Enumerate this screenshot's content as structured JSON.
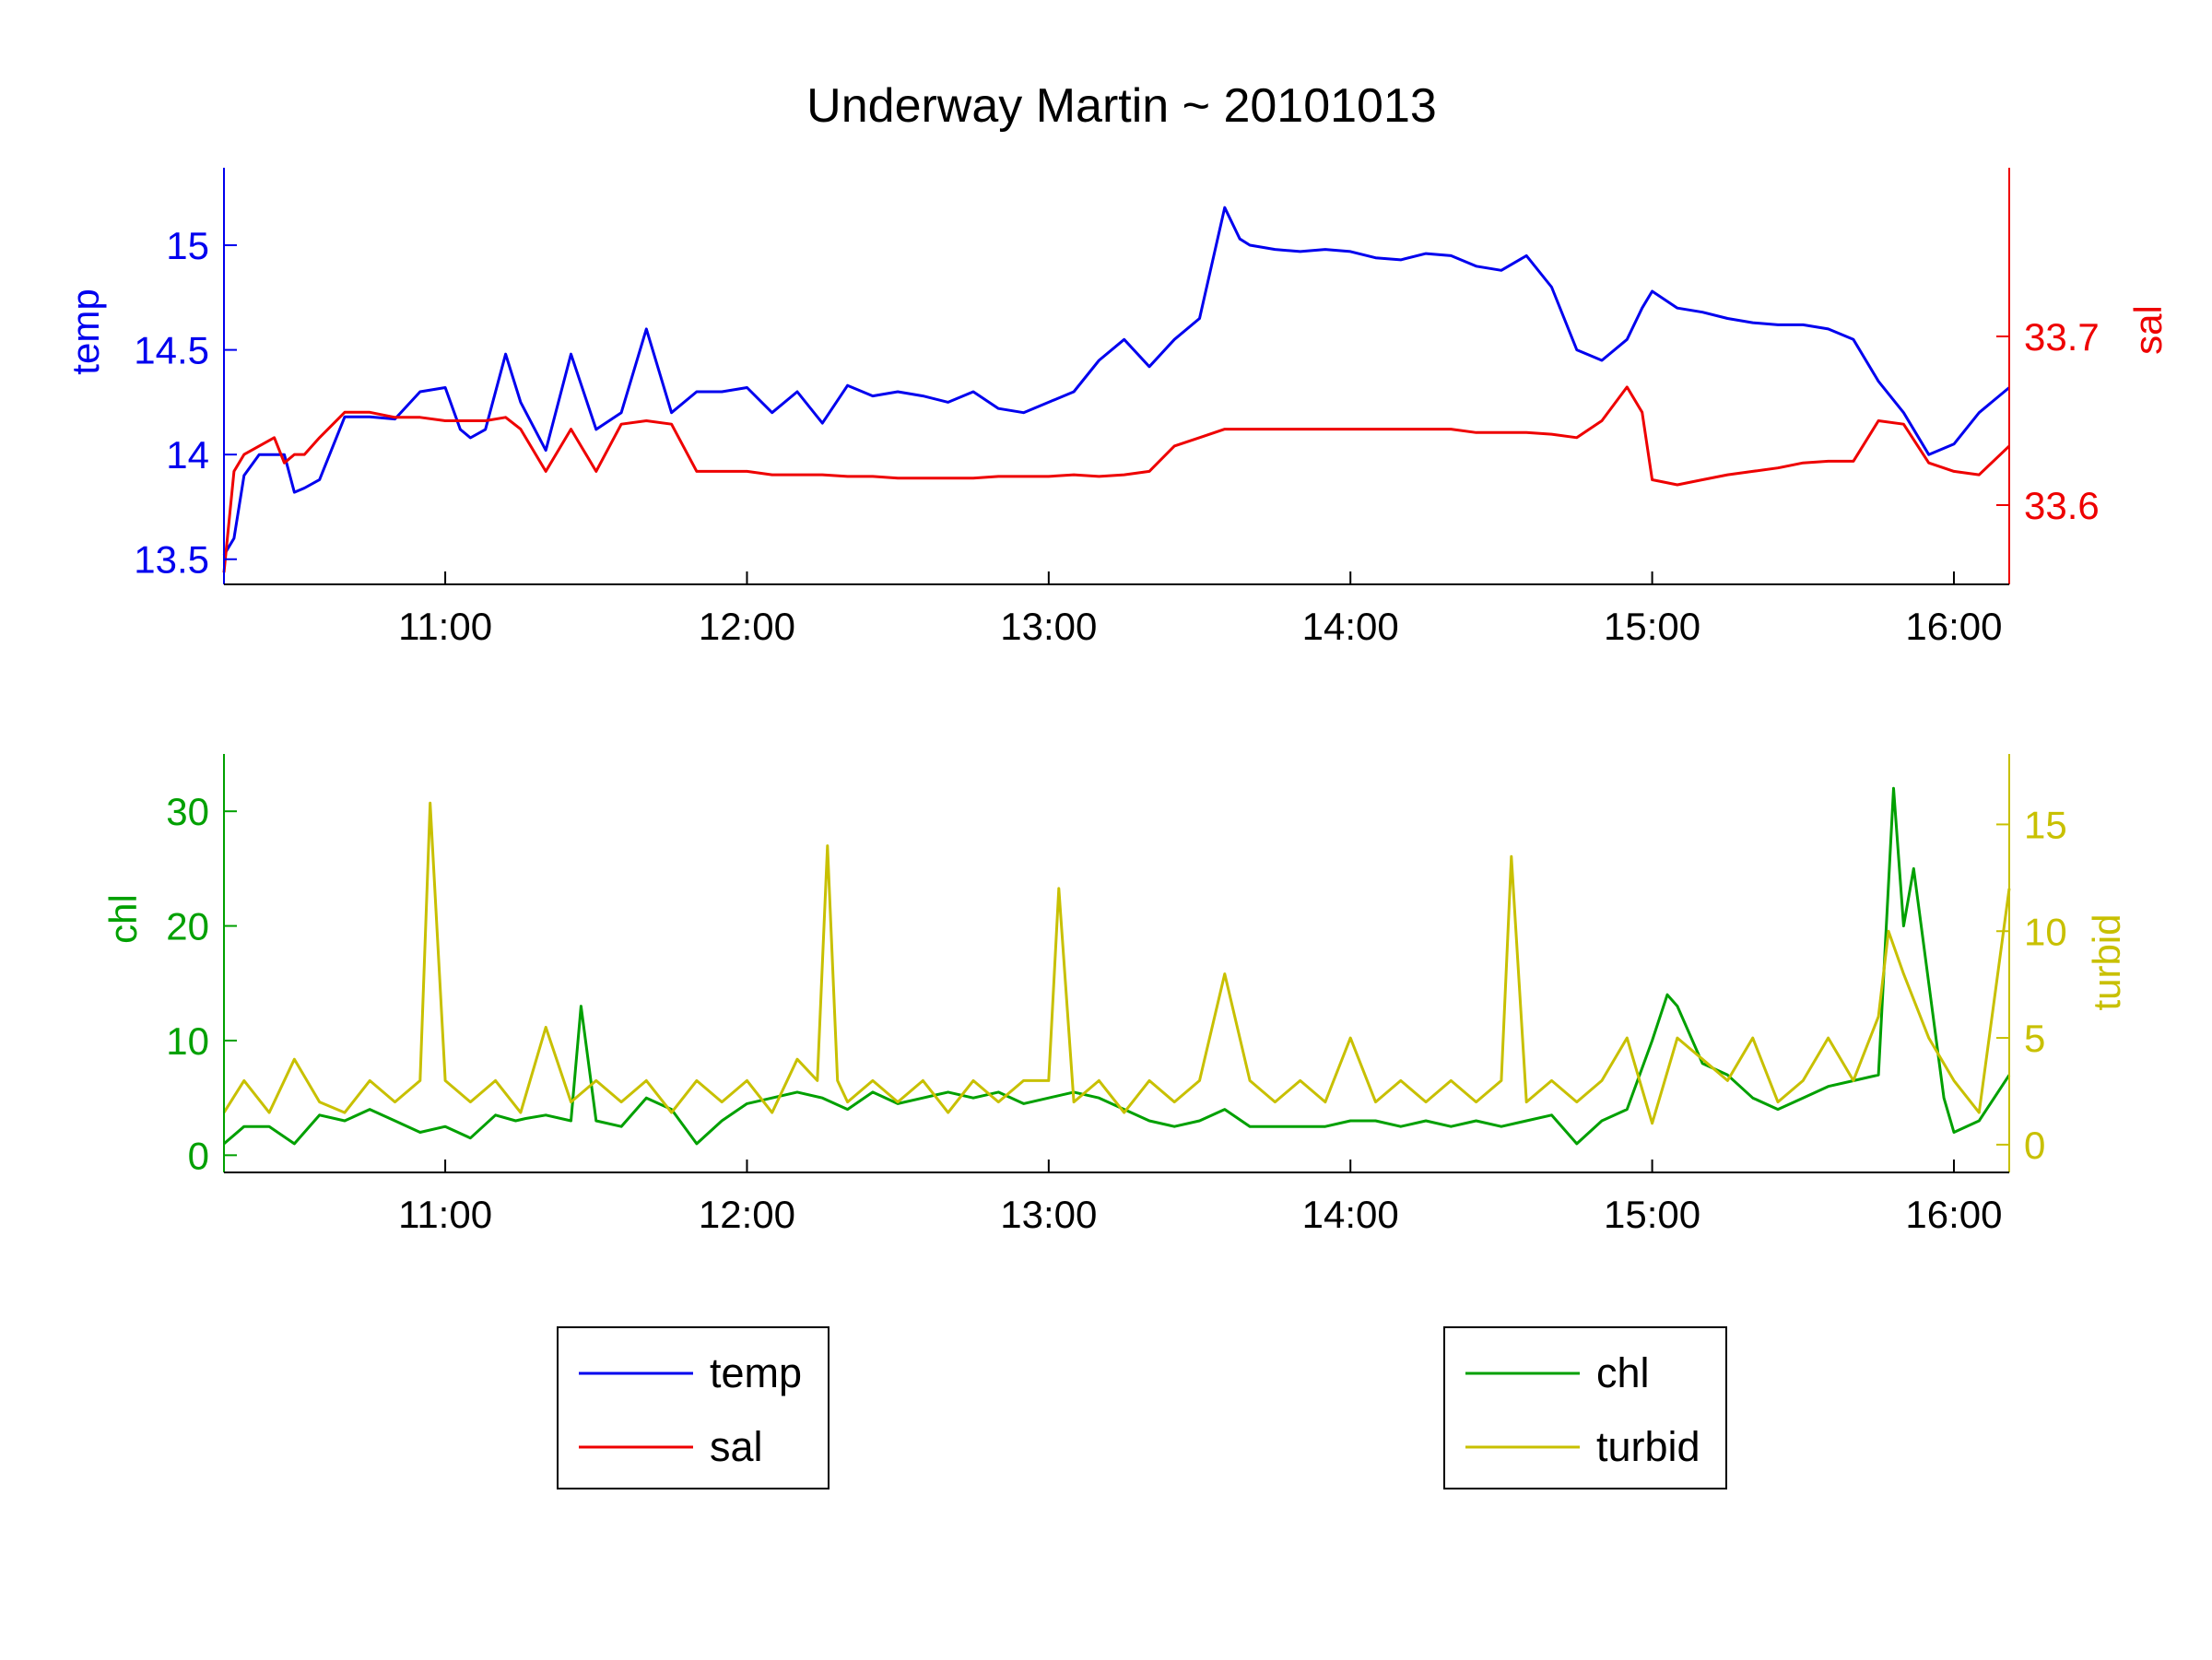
{
  "title": "Underway Martin ~ 20101013",
  "colors": {
    "temp": "#0000ee",
    "sal": "#ee0000",
    "chl": "#00a000",
    "turbid": "#c8c000",
    "axis": "#000000"
  },
  "chart_data": [
    {
      "type": "line",
      "panel": "top",
      "xlim": [
        "10:16",
        "16:11"
      ],
      "x_ticks": [
        "11:00",
        "12:00",
        "13:00",
        "14:00",
        "15:00",
        "16:00"
      ],
      "y_left": {
        "label": "temp",
        "ylim": [
          13.38,
          15.37
        ],
        "ticks": [
          "13.5",
          "14",
          "14.5",
          "15"
        ]
      },
      "y_right": {
        "label": "sal",
        "ylim": [
          33.553,
          33.8
        ],
        "ticks": [
          "33.6",
          "33.7"
        ]
      },
      "grid": false,
      "series": [
        {
          "name": "temp",
          "axis": "left",
          "x": [
            "10:16",
            "10:18",
            "10:20",
            "10:23",
            "10:26",
            "10:28",
            "10:30",
            "10:32",
            "10:35",
            "10:40",
            "10:45",
            "10:50",
            "10:55",
            "11:00",
            "11:03",
            "11:05",
            "11:08",
            "11:12",
            "11:15",
            "11:20",
            "11:25",
            "11:30",
            "11:35",
            "11:40",
            "11:45",
            "11:50",
            "11:55",
            "12:00",
            "12:05",
            "12:10",
            "12:15",
            "12:20",
            "12:25",
            "12:30",
            "12:35",
            "12:40",
            "12:45",
            "12:50",
            "12:55",
            "13:00",
            "13:05",
            "13:10",
            "13:15",
            "13:20",
            "13:25",
            "13:30",
            "13:35",
            "13:38",
            "13:40",
            "13:45",
            "13:50",
            "13:55",
            "14:00",
            "14:05",
            "14:10",
            "14:15",
            "14:20",
            "14:25",
            "14:30",
            "14:35",
            "14:40",
            "14:45",
            "14:50",
            "14:55",
            "14:58",
            "15:00",
            "15:05",
            "15:10",
            "15:15",
            "15:20",
            "15:25",
            "15:30",
            "15:35",
            "15:40",
            "15:45",
            "15:50",
            "15:55",
            "16:00",
            "16:05",
            "16:11"
          ],
          "values": [
            13.52,
            13.6,
            13.9,
            14.0,
            14.0,
            14.0,
            13.82,
            13.84,
            13.88,
            14.18,
            14.18,
            14.17,
            14.3,
            14.32,
            14.12,
            14.08,
            14.12,
            14.48,
            14.25,
            14.02,
            14.48,
            14.12,
            14.2,
            14.6,
            14.2,
            14.3,
            14.3,
            14.32,
            14.2,
            14.3,
            14.15,
            14.33,
            14.28,
            14.3,
            14.28,
            14.25,
            14.3,
            14.22,
            14.2,
            14.25,
            14.3,
            14.45,
            14.55,
            14.42,
            14.55,
            14.65,
            15.18,
            15.03,
            15.0,
            14.98,
            14.97,
            14.98,
            14.97,
            14.94,
            14.93,
            14.96,
            14.95,
            14.9,
            14.88,
            14.95,
            14.8,
            14.5,
            14.45,
            14.55,
            14.7,
            14.78,
            14.7,
            14.68,
            14.65,
            14.63,
            14.62,
            14.62,
            14.6,
            14.55,
            14.35,
            14.2,
            14.0,
            14.05,
            14.2,
            14.32
          ]
        },
        {
          "name": "sal",
          "axis": "right",
          "x": [
            "10:16",
            "10:18",
            "10:20",
            "10:23",
            "10:26",
            "10:28",
            "10:30",
            "10:32",
            "10:35",
            "10:40",
            "10:45",
            "10:50",
            "10:55",
            "11:00",
            "11:03",
            "11:05",
            "11:08",
            "11:12",
            "11:15",
            "11:20",
            "11:25",
            "11:30",
            "11:35",
            "11:40",
            "11:45",
            "11:50",
            "11:55",
            "12:00",
            "12:05",
            "12:10",
            "12:15",
            "12:20",
            "12:25",
            "12:30",
            "12:35",
            "12:40",
            "12:45",
            "12:50",
            "12:55",
            "13:00",
            "13:05",
            "13:10",
            "13:15",
            "13:20",
            "13:25",
            "13:30",
            "13:35",
            "13:38",
            "13:40",
            "13:45",
            "13:50",
            "13:55",
            "14:00",
            "14:05",
            "14:10",
            "14:15",
            "14:20",
            "14:25",
            "14:30",
            "14:35",
            "14:40",
            "14:45",
            "14:50",
            "14:55",
            "14:58",
            "15:00",
            "15:05",
            "15:10",
            "15:15",
            "15:20",
            "15:25",
            "15:30",
            "15:35",
            "15:40",
            "15:45",
            "15:50",
            "15:55",
            "16:00",
            "16:05",
            "16:11"
          ],
          "values": [
            33.56,
            33.62,
            33.63,
            33.635,
            33.64,
            33.625,
            33.63,
            33.63,
            33.64,
            33.655,
            33.655,
            33.652,
            33.652,
            33.65,
            33.65,
            33.65,
            33.65,
            33.652,
            33.645,
            33.62,
            33.645,
            33.62,
            33.648,
            33.65,
            33.648,
            33.62,
            33.62,
            33.62,
            33.618,
            33.618,
            33.618,
            33.617,
            33.617,
            33.616,
            33.616,
            33.616,
            33.616,
            33.617,
            33.617,
            33.617,
            33.618,
            33.617,
            33.618,
            33.62,
            33.635,
            33.64,
            33.645,
            33.645,
            33.645,
            33.645,
            33.645,
            33.645,
            33.645,
            33.645,
            33.645,
            33.645,
            33.645,
            33.643,
            33.643,
            33.643,
            33.642,
            33.64,
            33.65,
            33.67,
            33.655,
            33.615,
            33.612,
            33.615,
            33.618,
            33.62,
            33.622,
            33.625,
            33.626,
            33.626,
            33.65,
            33.648,
            33.625,
            33.62,
            33.618,
            33.635
          ]
        }
      ]
    },
    {
      "type": "line",
      "panel": "bottom",
      "xlim": [
        "10:16",
        "16:11"
      ],
      "x_ticks": [
        "11:00",
        "12:00",
        "13:00",
        "14:00",
        "15:00",
        "16:00"
      ],
      "y_left": {
        "label": "chl",
        "ylim": [
          -1.5,
          35
        ],
        "ticks": [
          "0",
          "10",
          "20",
          "30"
        ]
      },
      "y_right": {
        "label": "turbid",
        "ylim": [
          -1.3,
          18.3
        ],
        "ticks": [
          "0",
          "5",
          "10",
          "15"
        ]
      },
      "grid": false,
      "series": [
        {
          "name": "chl",
          "axis": "left",
          "x": [
            "10:16",
            "10:20",
            "10:25",
            "10:30",
            "10:35",
            "10:40",
            "10:45",
            "10:50",
            "10:55",
            "11:00",
            "11:05",
            "11:10",
            "11:14",
            "11:16",
            "11:20",
            "11:25",
            "11:27",
            "11:30",
            "11:35",
            "11:40",
            "11:45",
            "11:50",
            "11:55",
            "12:00",
            "12:05",
            "12:10",
            "12:15",
            "12:20",
            "12:25",
            "12:30",
            "12:35",
            "12:40",
            "12:45",
            "12:50",
            "12:55",
            "13:00",
            "13:05",
            "13:10",
            "13:15",
            "13:20",
            "13:25",
            "13:30",
            "13:35",
            "13:40",
            "13:45",
            "13:50",
            "13:55",
            "14:00",
            "14:05",
            "14:10",
            "14:15",
            "14:20",
            "14:25",
            "14:30",
            "14:35",
            "14:40",
            "14:45",
            "14:50",
            "14:55",
            "15:00",
            "15:03",
            "15:05",
            "15:10",
            "15:15",
            "15:20",
            "15:25",
            "15:30",
            "15:35",
            "15:40",
            "15:45",
            "15:48",
            "15:50",
            "15:52",
            "15:55",
            "15:58",
            "16:00",
            "16:05",
            "16:11"
          ],
          "values": [
            1,
            2.5,
            2.5,
            1,
            3.5,
            3,
            4,
            3,
            2,
            2.5,
            1.5,
            3.5,
            3,
            3.2,
            3.5,
            3,
            13,
            3,
            2.5,
            5,
            4,
            1,
            3,
            4.5,
            5,
            5.5,
            5,
            4,
            5.5,
            4.5,
            5,
            5.5,
            5,
            5.5,
            4.5,
            5,
            5.5,
            5,
            4,
            3,
            2.5,
            3,
            4,
            2.5,
            2.5,
            2.5,
            2.5,
            3,
            3,
            2.5,
            3,
            2.5,
            3,
            2.5,
            3,
            3.5,
            1,
            3,
            4,
            10,
            14,
            13,
            8,
            7,
            5,
            4,
            5,
            6,
            6.5,
            7,
            32,
            20,
            25,
            15,
            5,
            2,
            3,
            7
          ]
        },
        {
          "name": "turbid",
          "axis": "right",
          "x": [
            "10:16",
            "10:20",
            "10:25",
            "10:30",
            "10:35",
            "10:40",
            "10:45",
            "10:50",
            "10:55",
            "10:57",
            "11:00",
            "11:05",
            "11:10",
            "11:15",
            "11:20",
            "11:25",
            "11:30",
            "11:35",
            "11:40",
            "11:45",
            "11:50",
            "11:55",
            "12:00",
            "12:05",
            "12:10",
            "12:14",
            "12:16",
            "12:18",
            "12:20",
            "12:25",
            "12:30",
            "12:35",
            "12:40",
            "12:45",
            "12:50",
            "12:55",
            "13:00",
            "13:02",
            "13:05",
            "13:10",
            "13:15",
            "13:20",
            "13:25",
            "13:30",
            "13:35",
            "13:40",
            "13:45",
            "13:50",
            "13:55",
            "14:00",
            "14:05",
            "14:10",
            "14:15",
            "14:20",
            "14:25",
            "14:30",
            "14:32",
            "14:35",
            "14:40",
            "14:45",
            "14:50",
            "14:55",
            "15:00",
            "15:05",
            "15:10",
            "15:15",
            "15:20",
            "15:25",
            "15:30",
            "15:35",
            "15:40",
            "15:45",
            "15:47",
            "15:50",
            "15:55",
            "16:00",
            "16:05",
            "16:11"
          ],
          "values": [
            1.5,
            3,
            1.5,
            4,
            2,
            1.5,
            3,
            2,
            3,
            16,
            3,
            2,
            3,
            1.5,
            5.5,
            2,
            3,
            2,
            3,
            1.5,
            3,
            2,
            3,
            1.5,
            4,
            3,
            14,
            3,
            2,
            3,
            2,
            3,
            1.5,
            3,
            2,
            3,
            3,
            12,
            2,
            3,
            1.5,
            3,
            2,
            3,
            8,
            3,
            2,
            3,
            2,
            5,
            2,
            3,
            2,
            3,
            2,
            3,
            13.5,
            2,
            3,
            2,
            3,
            5,
            1,
            5,
            4,
            3,
            5,
            2,
            3,
            5,
            3,
            6,
            10,
            8,
            5,
            3,
            1.5,
            12
          ]
        }
      ]
    }
  ],
  "legends": [
    {
      "entries": [
        "temp",
        "sal"
      ]
    },
    {
      "entries": [
        "chl",
        "turbid"
      ]
    }
  ]
}
